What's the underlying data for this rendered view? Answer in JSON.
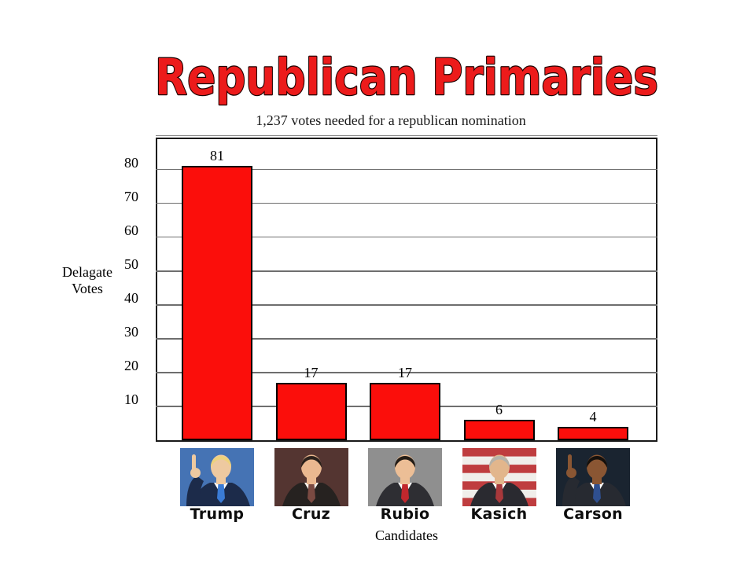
{
  "slide": {
    "title": "Republican Primaries",
    "subtitle": "1,237 votes needed for a republican nomination",
    "background_color": "#ffffff",
    "title_color": "#ec1b1b",
    "title_outline_color": "#1d0200"
  },
  "chart_data": {
    "type": "bar",
    "title": "Republican Primaries",
    "subtitle": "1,237 votes needed for a republican nomination",
    "xlabel": "Candidates",
    "ylabel": "Delagate Votes",
    "ylabel_lines": [
      "Delagate",
      "Votes"
    ],
    "categories": [
      "Trump",
      "Cruz",
      "Rubio",
      "Kasich",
      "Carson"
    ],
    "values": [
      81,
      17,
      17,
      6,
      4
    ],
    "yticks": [
      10,
      20,
      30,
      40,
      50,
      60,
      70,
      80
    ],
    "gridlines": [
      10,
      20,
      30,
      40,
      50,
      60,
      70,
      80,
      90
    ],
    "ylim": [
      0,
      89
    ],
    "grid": true,
    "legend": false,
    "bar_color": "#fb0e0b",
    "bar_border_color": "#000000",
    "gridline_color": "#6e6e6e",
    "frame_color": "#1a1a1a"
  },
  "candidates": [
    {
      "name": "Trump",
      "value": 81,
      "photo_name": "photo-trump",
      "photo": {
        "bg": "#4573b4",
        "skin": "#eec9a0",
        "hair": "#eed27c",
        "suit": "#1c2b4a",
        "shirt": "#ffffff",
        "tie": "#3a7bd5",
        "hand": "left",
        "flag": false
      }
    },
    {
      "name": "Cruz",
      "value": 17,
      "photo_name": "photo-cruz",
      "photo": {
        "bg": "#543531",
        "skin": "#eab890",
        "hair": "#2b211c",
        "suit": "#262220",
        "shirt": "#f5f0ea",
        "tie": "#7a4a42",
        "hand": null,
        "flag": false
      }
    },
    {
      "name": "Rubio",
      "value": 17,
      "photo_name": "photo-rubio",
      "photo": {
        "bg": "#8f8f8f",
        "skin": "#ecbe96",
        "hair": "#231c16",
        "suit": "#2e2e33",
        "shirt": "#ffffff",
        "tie": "#c1272d",
        "hand": null,
        "flag": false
      }
    },
    {
      "name": "Kasich",
      "value": 6,
      "photo_name": "photo-kasich",
      "photo": {
        "bg": "#f0eeea",
        "skin": "#e2b68c",
        "hair": "#b5b1a9",
        "suit": "#2a2a30",
        "shirt": "#ffffff",
        "tie": "#a8383b",
        "hand": null,
        "flag": true
      }
    },
    {
      "name": "Carson",
      "value": 4,
      "photo_name": "photo-carson",
      "photo": {
        "bg": "#1a2430",
        "skin": "#8a5633",
        "hair": "#15100c",
        "suit": "#272a31",
        "shirt": "#ffffff",
        "tie": "#2f4f8f",
        "hand": "left",
        "flag": false
      }
    }
  ]
}
